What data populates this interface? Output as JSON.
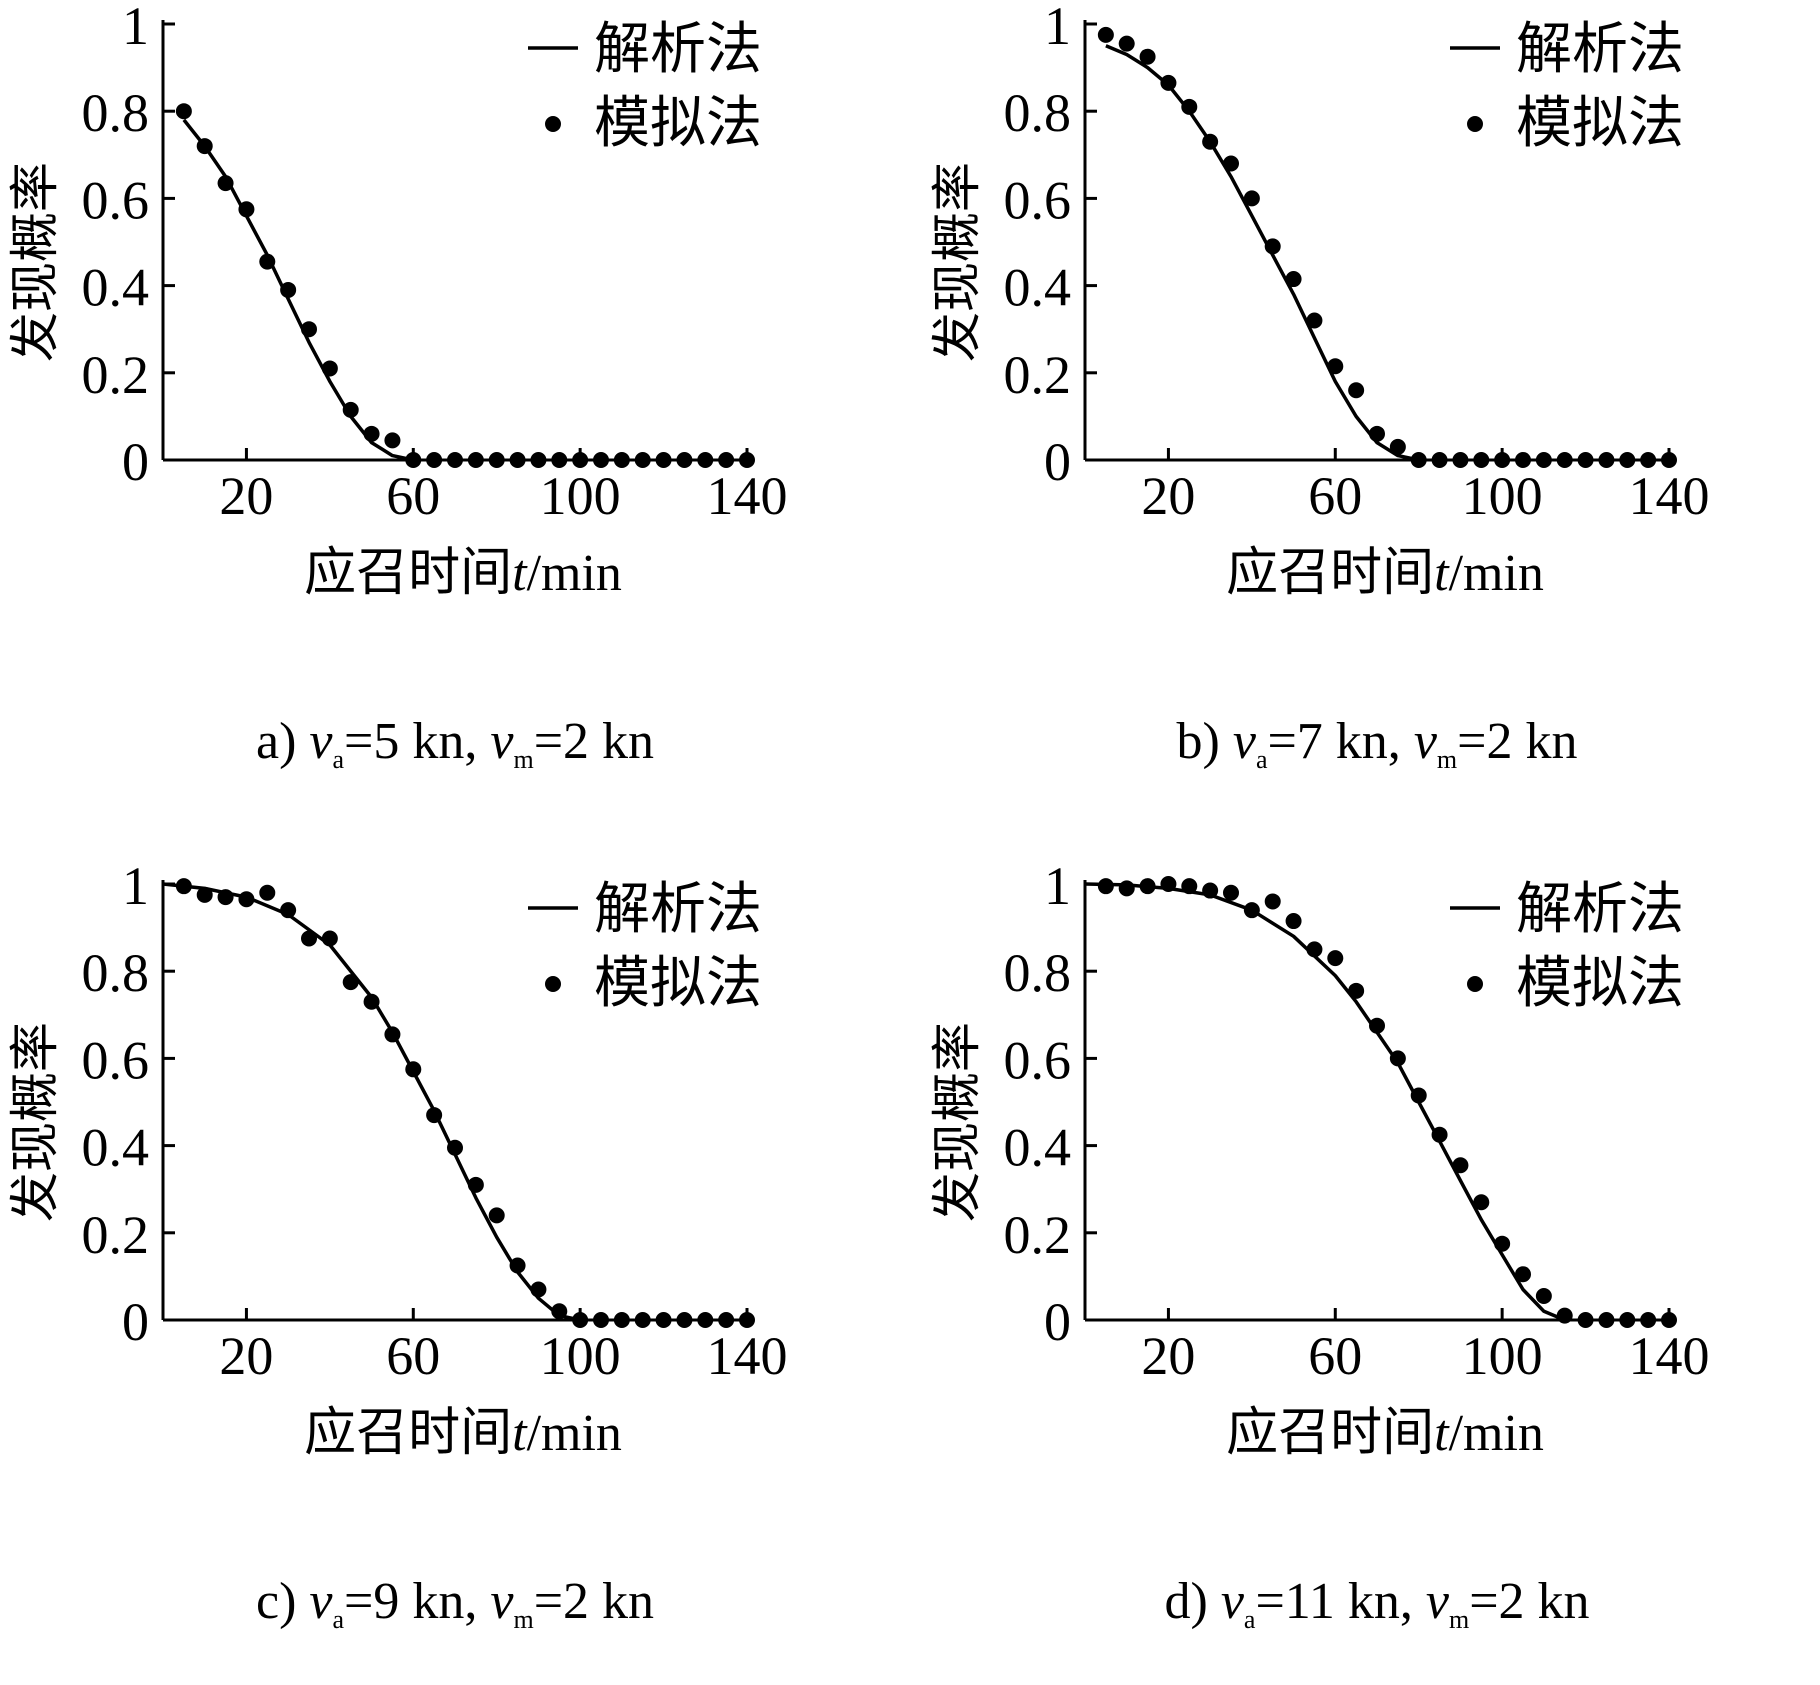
{
  "chart_data": [
    {
      "type": "line",
      "caption": {
        "prefix": "a)",
        "va": "=5 kn,",
        "vm": "=2 kn"
      },
      "xlabel": "应召时间",
      "xlabel_var": "t",
      "xlabel_unit": "/min",
      "ylabel": "发现概率",
      "xlim": [
        0,
        140
      ],
      "ylim": [
        0,
        1
      ],
      "xticks": [
        20,
        60,
        100,
        140
      ],
      "yticks": [
        0,
        0.2,
        0.4,
        0.6,
        0.8,
        1
      ],
      "ytick_labels": [
        "0",
        "0.2",
        "0.4",
        "0.6",
        "0.8",
        "1"
      ],
      "legend": [
        "解析法",
        "模拟法"
      ],
      "legend_position": "top-right",
      "series": [
        {
          "name": "解析法",
          "kind": "line",
          "x": [
            5,
            10,
            15,
            20,
            25,
            30,
            35,
            40,
            45,
            50,
            55,
            60
          ],
          "y": [
            0.78,
            0.72,
            0.65,
            0.56,
            0.47,
            0.37,
            0.27,
            0.18,
            0.1,
            0.04,
            0.01,
            0
          ]
        },
        {
          "name": "模拟法",
          "kind": "scatter",
          "x": [
            5,
            10,
            15,
            20,
            25,
            30,
            35,
            40,
            45,
            50,
            55,
            60,
            65,
            70,
            75,
            80,
            85,
            90,
            95,
            100,
            105,
            110,
            115,
            120,
            125,
            130,
            135,
            140
          ],
          "y": [
            0.8,
            0.72,
            0.635,
            0.575,
            0.455,
            0.39,
            0.3,
            0.21,
            0.115,
            0.06,
            0.045,
            0,
            0,
            0,
            0,
            0,
            0,
            0,
            0,
            0,
            0,
            0,
            0,
            0,
            0,
            0,
            0,
            0
          ]
        }
      ]
    },
    {
      "type": "line",
      "caption": {
        "prefix": "b)",
        "va": "=7 kn,",
        "vm": "=2 kn"
      },
      "xlabel": "应召时间",
      "xlabel_var": "t",
      "xlabel_unit": "/min",
      "ylabel": "发现概率",
      "xlim": [
        0,
        140
      ],
      "ylim": [
        0,
        1
      ],
      "xticks": [
        20,
        60,
        100,
        140
      ],
      "yticks": [
        0,
        0.2,
        0.4,
        0.6,
        0.8,
        1
      ],
      "ytick_labels": [
        "0",
        "0.2",
        "0.4",
        "0.6",
        "0.8",
        "1"
      ],
      "legend": [
        "解析法",
        "模拟法"
      ],
      "legend_position": "top-right",
      "series": [
        {
          "name": "解析法",
          "kind": "line",
          "x": [
            5,
            10,
            15,
            20,
            25,
            30,
            35,
            40,
            45,
            50,
            55,
            60,
            65,
            70,
            75,
            80
          ],
          "y": [
            0.95,
            0.93,
            0.9,
            0.86,
            0.8,
            0.73,
            0.65,
            0.56,
            0.47,
            0.38,
            0.28,
            0.18,
            0.1,
            0.04,
            0.01,
            0
          ]
        },
        {
          "name": "模拟法",
          "kind": "scatter",
          "x": [
            5,
            10,
            15,
            20,
            25,
            30,
            35,
            40,
            45,
            50,
            55,
            60,
            65,
            70,
            75,
            80,
            85,
            90,
            95,
            100,
            105,
            110,
            115,
            120,
            125,
            130,
            135,
            140
          ],
          "y": [
            0.975,
            0.955,
            0.925,
            0.865,
            0.81,
            0.73,
            0.68,
            0.6,
            0.49,
            0.415,
            0.32,
            0.215,
            0.16,
            0.06,
            0.03,
            0,
            0,
            0,
            0,
            0,
            0,
            0,
            0,
            0,
            0,
            0,
            0,
            0
          ]
        }
      ]
    },
    {
      "type": "line",
      "caption": {
        "prefix": "c)",
        "va": "=9 kn,",
        "vm": "=2 kn"
      },
      "xlabel": "应召时间",
      "xlabel_var": "t",
      "xlabel_unit": "/min",
      "ylabel": "发现概率",
      "xlim": [
        0,
        140
      ],
      "ylim": [
        0,
        1
      ],
      "xticks": [
        20,
        60,
        100,
        140
      ],
      "yticks": [
        0,
        0.2,
        0.4,
        0.6,
        0.8,
        1
      ],
      "ytick_labels": [
        "0",
        "0.2",
        "0.4",
        "0.6",
        "0.8",
        "1"
      ],
      "legend": [
        "解析法",
        "模拟法"
      ],
      "legend_position": "top-right",
      "series": [
        {
          "name": "解析法",
          "kind": "line",
          "x": [
            0,
            10,
            20,
            30,
            40,
            50,
            55,
            60,
            65,
            70,
            75,
            80,
            85,
            90,
            95,
            100
          ],
          "y": [
            1.0,
            0.99,
            0.97,
            0.93,
            0.86,
            0.74,
            0.66,
            0.57,
            0.48,
            0.38,
            0.28,
            0.19,
            0.11,
            0.05,
            0.01,
            0
          ]
        },
        {
          "name": "模拟法",
          "kind": "scatter",
          "x": [
            5,
            10,
            15,
            20,
            25,
            30,
            35,
            40,
            45,
            50,
            55,
            60,
            65,
            70,
            75,
            80,
            85,
            90,
            95,
            100,
            105,
            110,
            115,
            120,
            125,
            130,
            135,
            140
          ],
          "y": [
            0.995,
            0.975,
            0.97,
            0.965,
            0.98,
            0.94,
            0.875,
            0.875,
            0.775,
            0.73,
            0.655,
            0.575,
            0.47,
            0.395,
            0.31,
            0.24,
            0.125,
            0.07,
            0.02,
            0,
            0,
            0,
            0,
            0,
            0,
            0,
            0,
            0
          ]
        }
      ]
    },
    {
      "type": "line",
      "caption": {
        "prefix": "d)",
        "va": "=11 kn,",
        "vm": "=2 kn"
      },
      "xlabel": "应召时间",
      "xlabel_var": "t",
      "xlabel_unit": "/min",
      "ylabel": "发现概率",
      "xlim": [
        0,
        140
      ],
      "ylim": [
        0,
        1
      ],
      "xticks": [
        20,
        60,
        100,
        140
      ],
      "yticks": [
        0,
        0.2,
        0.4,
        0.6,
        0.8,
        1
      ],
      "ytick_labels": [
        "0",
        "0.2",
        "0.4",
        "0.6",
        "0.8",
        "1"
      ],
      "legend": [
        "解析法",
        "模拟法"
      ],
      "legend_position": "top-right",
      "series": [
        {
          "name": "解析法",
          "kind": "line",
          "x": [
            0,
            10,
            20,
            30,
            40,
            50,
            60,
            65,
            70,
            75,
            80,
            85,
            90,
            95,
            100,
            105,
            110,
            115
          ],
          "y": [
            1.0,
            0.998,
            0.99,
            0.975,
            0.94,
            0.88,
            0.79,
            0.73,
            0.66,
            0.59,
            0.5,
            0.41,
            0.32,
            0.23,
            0.15,
            0.07,
            0.02,
            0
          ]
        },
        {
          "name": "模拟法",
          "kind": "scatter",
          "x": [
            5,
            10,
            15,
            20,
            25,
            30,
            35,
            40,
            45,
            50,
            55,
            60,
            65,
            70,
            75,
            80,
            85,
            90,
            95,
            100,
            105,
            110,
            115,
            120,
            125,
            130,
            135,
            140
          ],
          "y": [
            0.995,
            0.99,
            0.995,
            1.0,
            0.995,
            0.985,
            0.98,
            0.94,
            0.96,
            0.915,
            0.85,
            0.83,
            0.755,
            0.675,
            0.6,
            0.515,
            0.425,
            0.355,
            0.27,
            0.175,
            0.105,
            0.055,
            0.01,
            0,
            0,
            0,
            0,
            0
          ]
        }
      ]
    }
  ]
}
